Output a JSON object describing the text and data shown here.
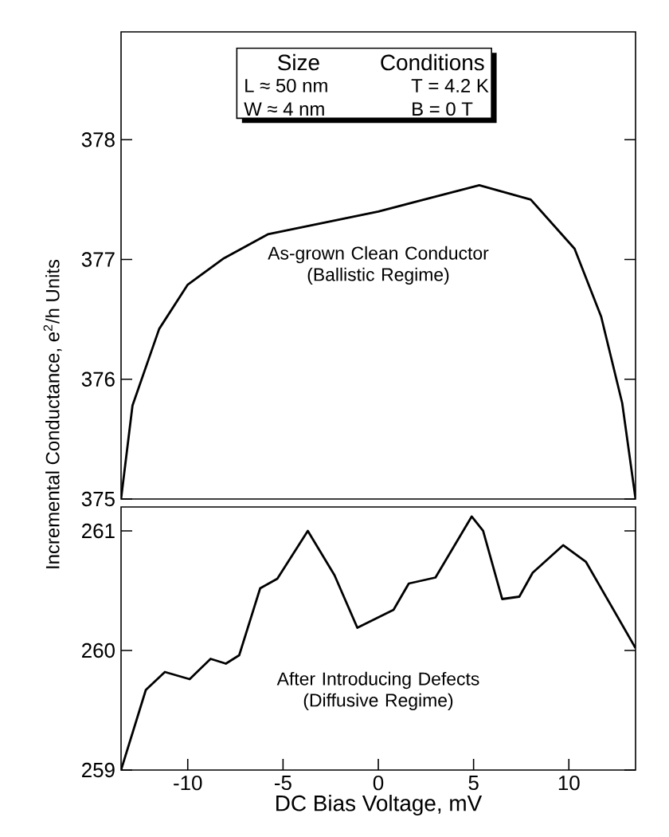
{
  "chart_data": [
    {
      "type": "line",
      "ylabel": "Incremental Conductance, e$^{2}$/h Units",
      "xlim": [
        -13.5,
        13.5
      ],
      "ylim": [
        375,
        378.9
      ],
      "yticks": [
        375,
        376,
        377,
        378
      ],
      "tick_labels": "y",
      "grid": false,
      "legend": false,
      "marker": "none",
      "line_style": "solid",
      "annotations": [
        "Size",
        "Conditions",
        "L ≈ 50 nm",
        "T = 4.2 K",
        "W ≈ 4 nm",
        "B = 0 T"
      ],
      "series": [
        {
          "name": "As-grown Clean Conductor (Ballistic Regime)",
          "color": "#000000",
          "x": [
            -13.5,
            -12.9,
            -11.5,
            -10,
            -8.1,
            -5.8,
            0,
            5.3,
            8.0,
            10.3,
            11.7,
            12.8,
            13.5
          ],
          "values": [
            375.0,
            375.78,
            376.42,
            376.79,
            377.01,
            377.21,
            377.4,
            377.62,
            377.5,
            377.09,
            376.52,
            375.8,
            375.0
          ]
        }
      ]
    },
    {
      "type": "line",
      "xlabel": "DC Bias Voltage, mV",
      "xlim": [
        -13.5,
        13.5
      ],
      "ylim": [
        259,
        261.2
      ],
      "xticks": [
        -10,
        -5,
        0,
        5,
        10
      ],
      "yticks": [
        259,
        260,
        261
      ],
      "grid": false,
      "legend": false,
      "marker": "none",
      "line_style": "solid",
      "series": [
        {
          "name": "After Introducing Defects (Diffusive Regime)",
          "color": "#000000",
          "x": [
            -13.5,
            -12.2,
            -11.2,
            -9.9,
            -8.8,
            -8.0,
            -7.3,
            -6.2,
            -5.3,
            -3.7,
            -2.3,
            -1.1,
            0.8,
            1.6,
            3.0,
            4.9,
            5.5,
            6.5,
            7.4,
            8.1,
            9.7,
            10.9,
            13.5
          ],
          "values": [
            259.0,
            259.67,
            259.82,
            259.76,
            259.93,
            259.89,
            259.96,
            260.52,
            260.6,
            261.0,
            260.63,
            260.19,
            260.34,
            260.56,
            260.61,
            261.12,
            261.0,
            260.43,
            260.45,
            260.65,
            260.88,
            260.74,
            260.02
          ]
        }
      ]
    }
  ]
}
